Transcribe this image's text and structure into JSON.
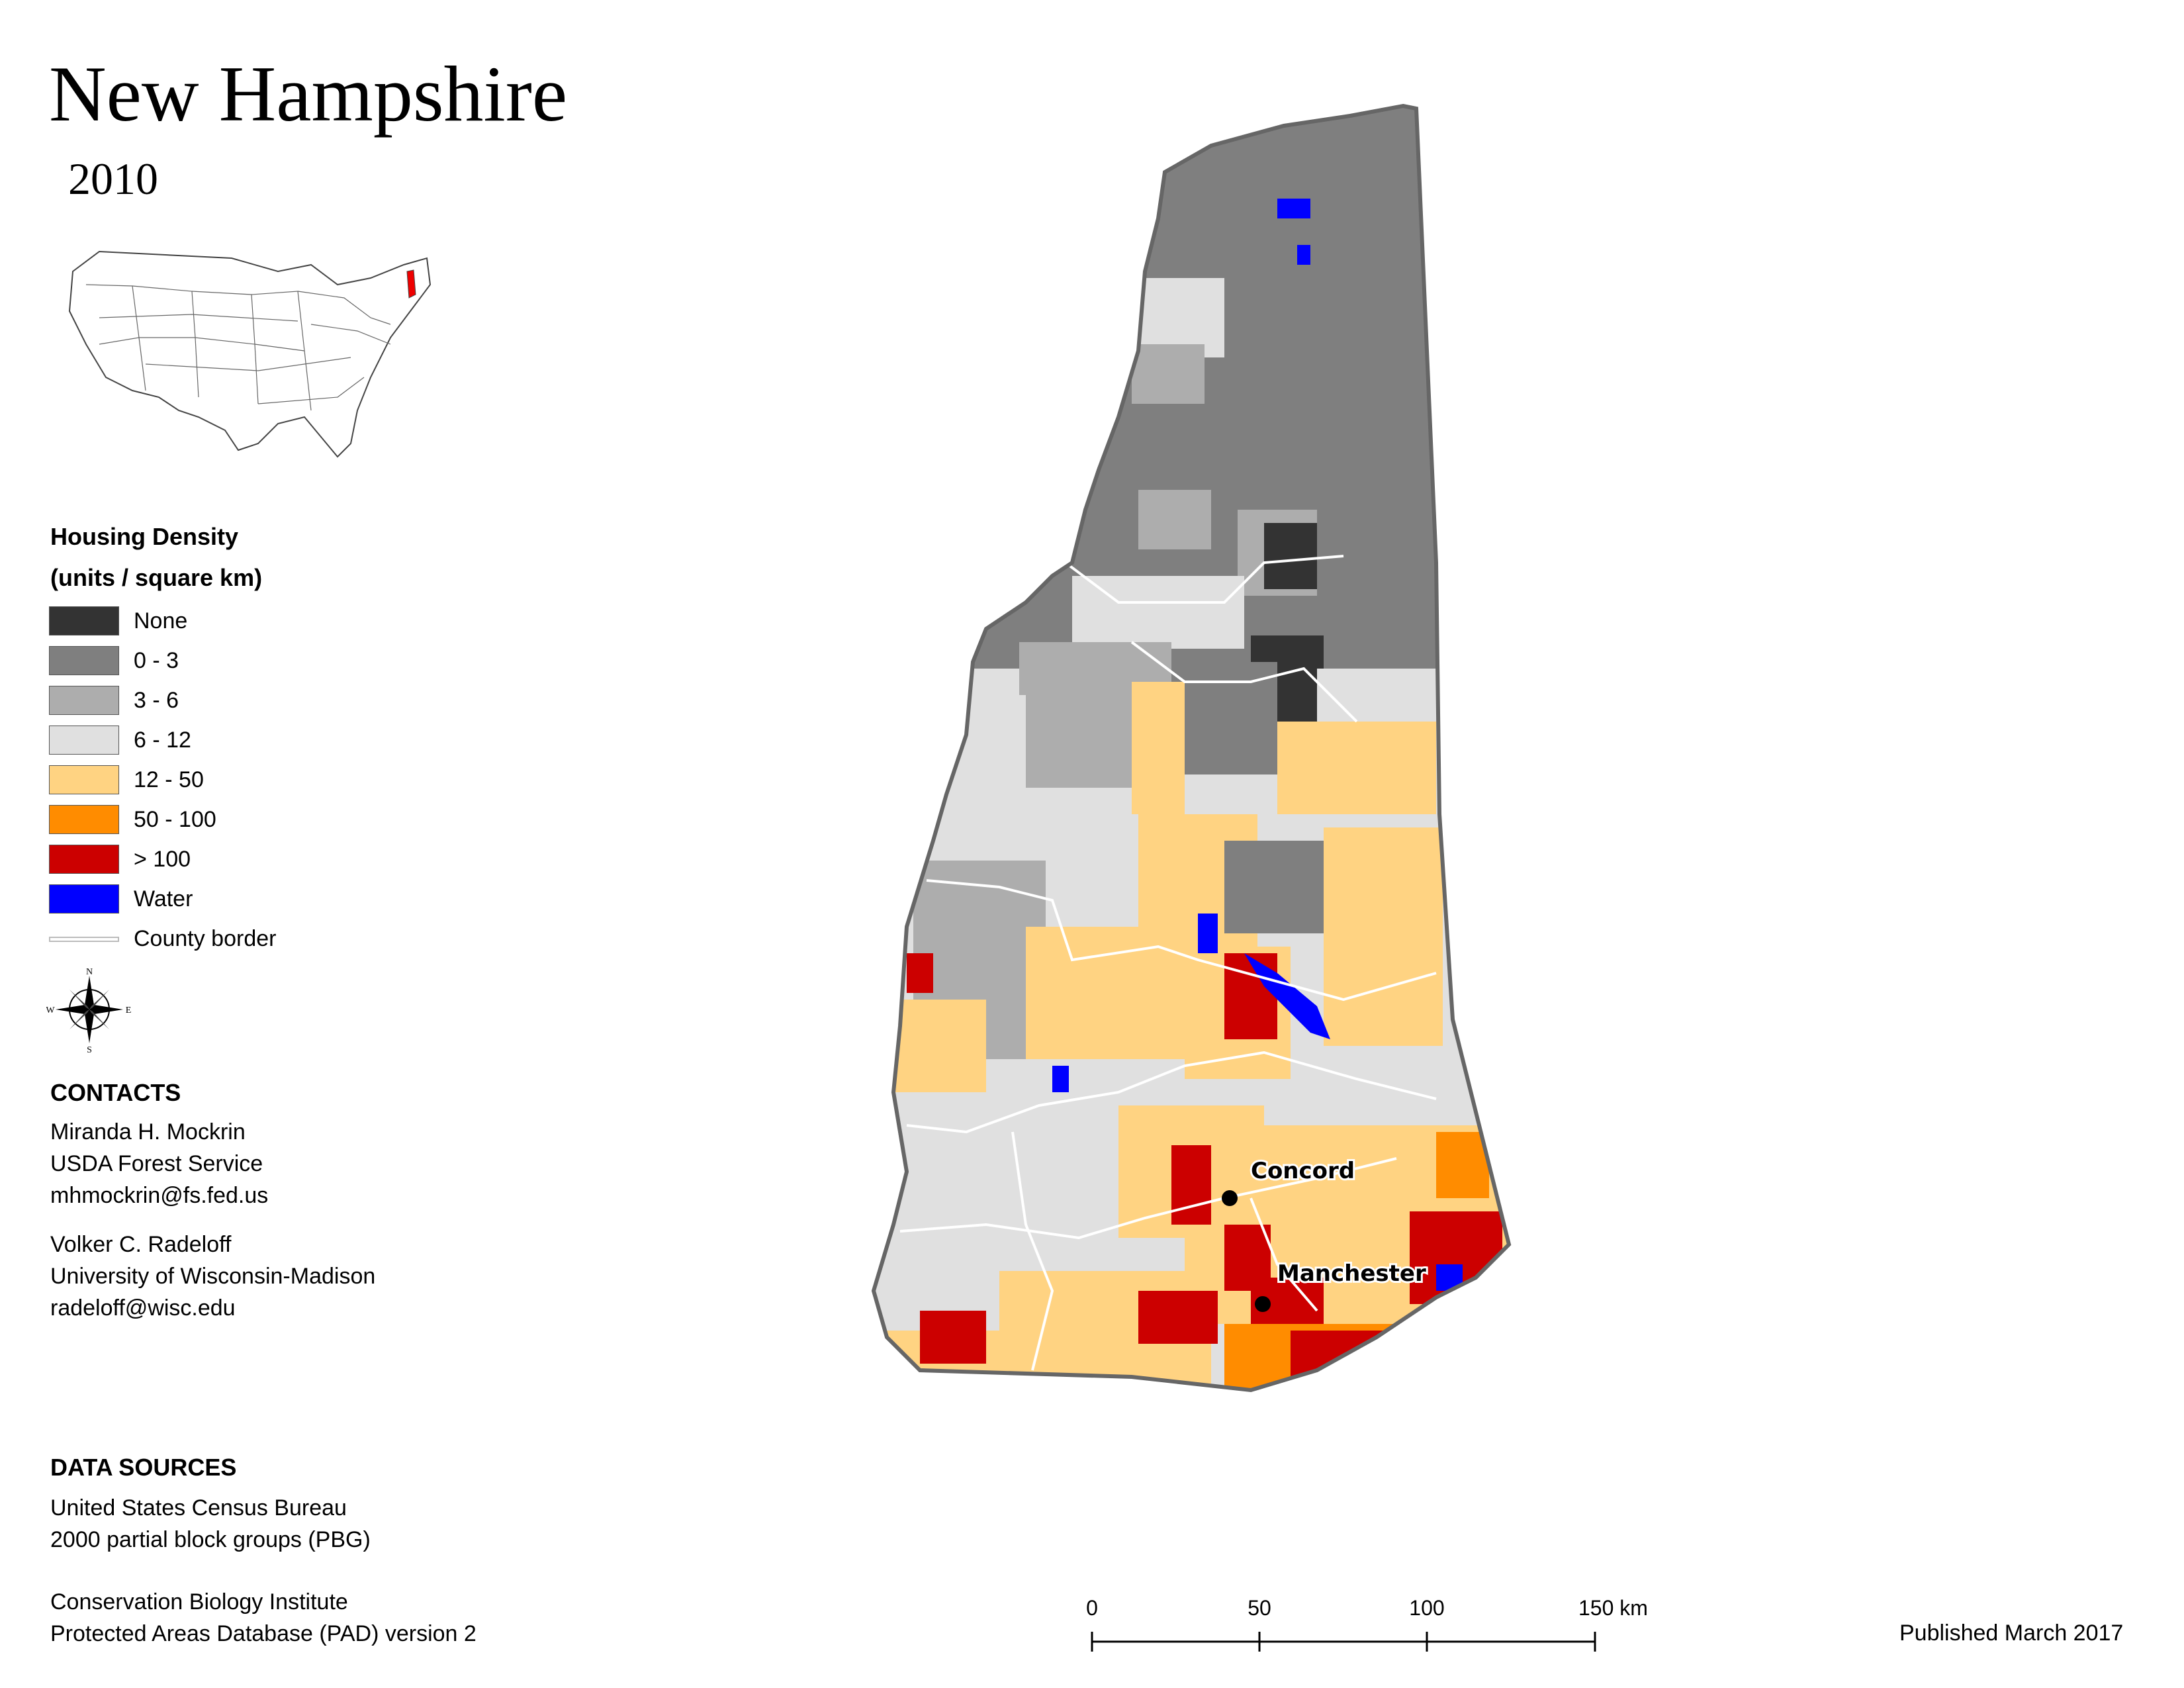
{
  "title": "New Hampshire",
  "year": "2010",
  "legend": {
    "title_line1": "Housing Density",
    "title_line2": "(units / square km)",
    "items": [
      {
        "label": "None",
        "color": "#333333"
      },
      {
        "label": "0 - 3",
        "color": "#7f7f7f"
      },
      {
        "label": "3 - 6",
        "color": "#adadad"
      },
      {
        "label": "6 - 12",
        "color": "#e0e0e0"
      },
      {
        "label": "12 - 50",
        "color": "#ffd382"
      },
      {
        "label": "50 - 100",
        "color": "#ff8c00"
      },
      {
        "label": "> 100",
        "color": "#cc0000"
      },
      {
        "label": "Water",
        "color": "#0000ff"
      }
    ],
    "county_border_label": "County border"
  },
  "contacts": {
    "heading": "CONTACTS",
    "people": [
      {
        "name": "Miranda H. Mockrin",
        "org": "USDA Forest Service",
        "email": "mhmockrin@fs.fed.us"
      },
      {
        "name": "Volker C. Radeloff",
        "org": "University of Wisconsin-Madison",
        "email": "radeloff@wisc.edu"
      }
    ]
  },
  "data_sources": {
    "heading": "DATA SOURCES",
    "lines": [
      "United States Census Bureau",
      "2000 partial block groups (PBG)",
      "Conservation Biology Institute",
      "Protected Areas Database (PAD) version 2"
    ]
  },
  "cities": [
    {
      "name": "Concord"
    },
    {
      "name": "Manchester"
    }
  ],
  "compass": {
    "n": "N",
    "s": "S",
    "e": "E",
    "w": "W"
  },
  "scale": {
    "ticks": [
      "0",
      "50",
      "100",
      "150 km"
    ],
    "values_km": [
      0,
      50,
      100,
      150
    ]
  },
  "published": "Published March 2017"
}
